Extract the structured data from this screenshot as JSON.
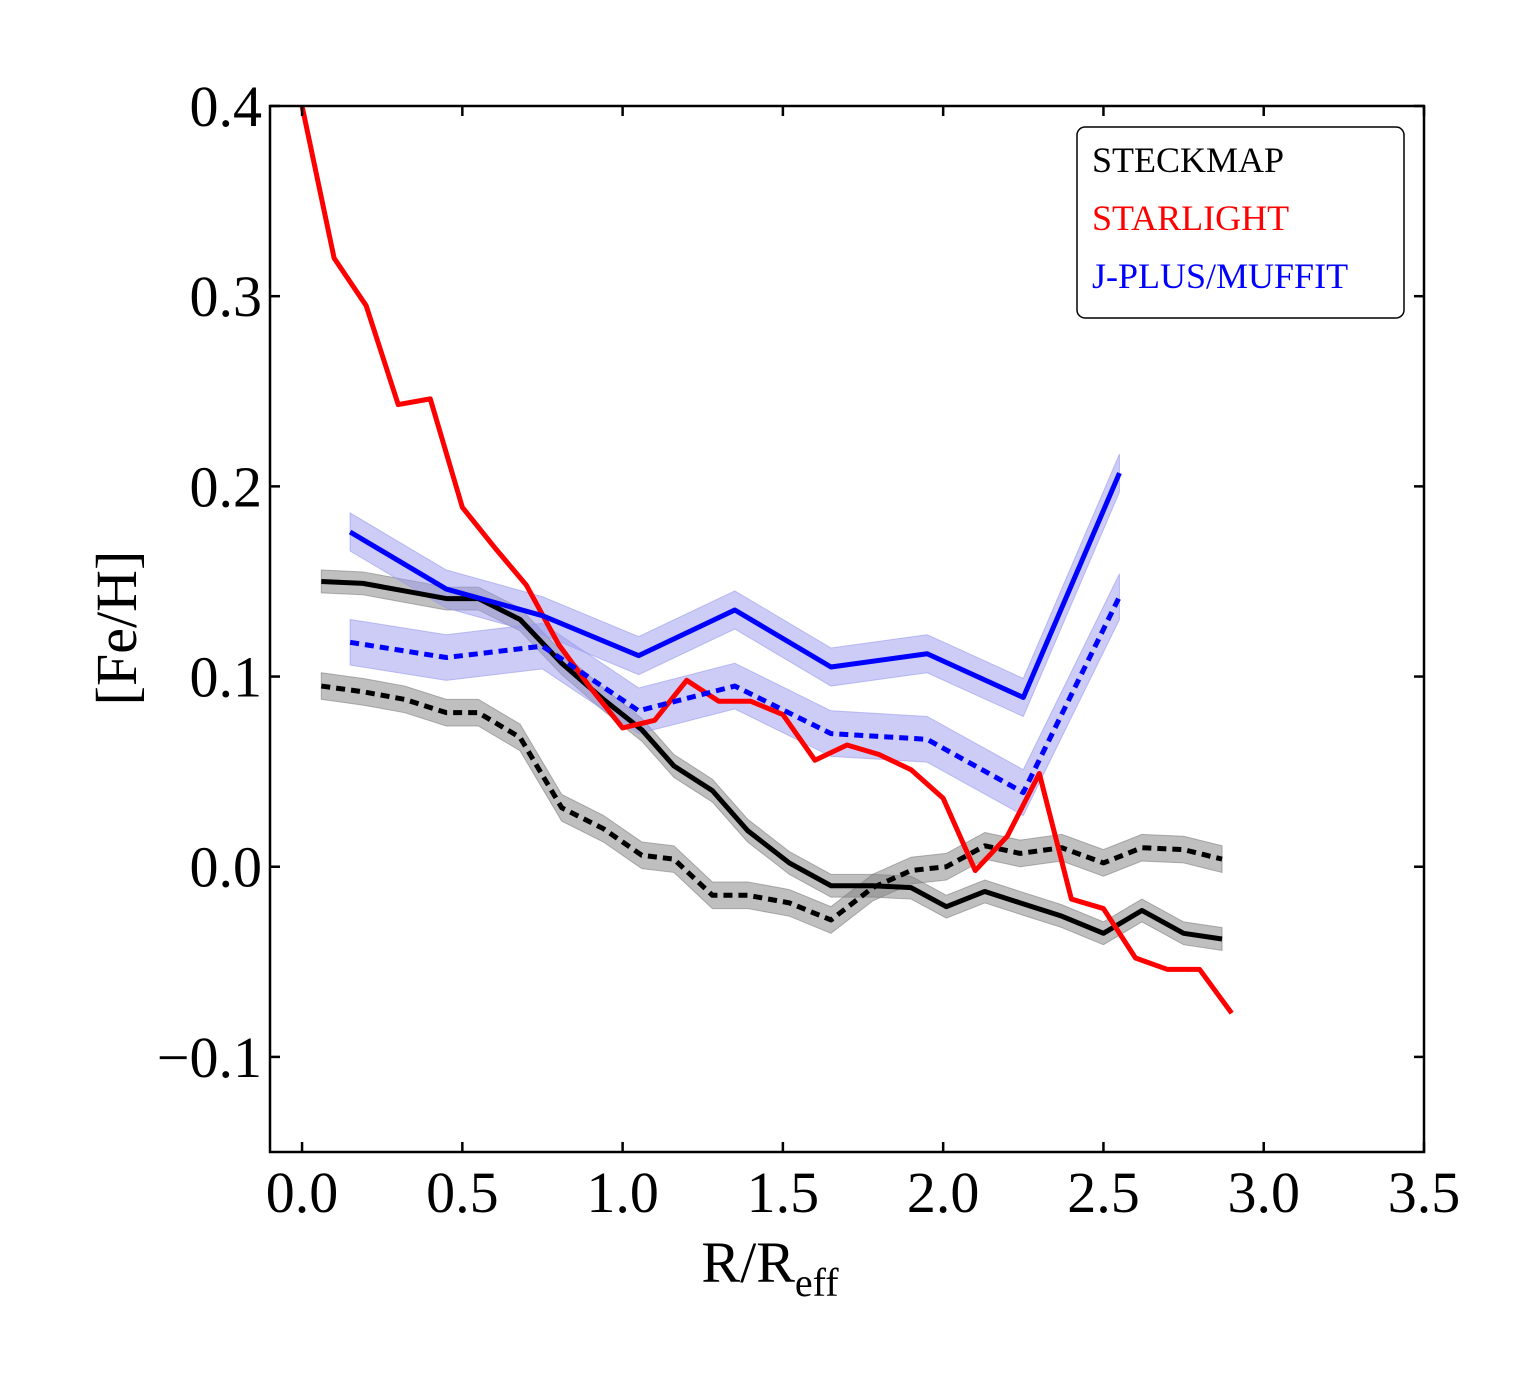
{
  "chart_data": {
    "type": "line",
    "title": "",
    "xlabel": "R/R",
    "xlabel_sub": "eff",
    "ylabel": "[Fe/H]",
    "xlim": [
      -0.1,
      3.5
    ],
    "ylim": [
      -0.15,
      0.4
    ],
    "grid": false,
    "legend_position": "top-right",
    "xticks": [
      0.0,
      0.5,
      1.0,
      1.5,
      2.0,
      2.5,
      3.0,
      3.5
    ],
    "xtick_labels": [
      "0.0",
      "0.5",
      "1.0",
      "1.5",
      "2.0",
      "2.5",
      "3.0",
      "3.5"
    ],
    "yticks": [
      -0.1,
      0.0,
      0.1,
      0.2,
      0.3,
      0.4
    ],
    "ytick_labels": [
      "−0.1",
      "0.0",
      "0.1",
      "0.2",
      "0.3",
      "0.4"
    ],
    "legend": [
      {
        "label": "STECKMAP",
        "color": "#000000"
      },
      {
        "label": "STARLIGHT",
        "color": "#ff0000"
      },
      {
        "label": "J-PLUS/MUFFIT",
        "color": "#0000ff"
      }
    ],
    "series": [
      {
        "name": "STECKMAP solid",
        "method": "STECKMAP",
        "style": "solid",
        "color": "#000000",
        "band_color": "#808080",
        "x": [
          0.06,
          0.19,
          0.32,
          0.45,
          0.55,
          0.68,
          0.81,
          0.94,
          1.06,
          1.16,
          1.28,
          1.39,
          1.52,
          1.65,
          1.78,
          1.9,
          2.01,
          2.13,
          2.24,
          2.37,
          2.5,
          2.62,
          2.75,
          2.87
        ],
        "y": [
          0.15,
          0.149,
          0.145,
          0.141,
          0.141,
          0.13,
          0.107,
          0.088,
          0.072,
          0.053,
          0.04,
          0.019,
          0.002,
          -0.01,
          -0.01,
          -0.011,
          -0.021,
          -0.013,
          -0.019,
          -0.026,
          -0.035,
          -0.023,
          -0.035,
          -0.038
        ],
        "err": 0.006
      },
      {
        "name": "STECKMAP dotted",
        "method": "STECKMAP",
        "style": "dotted",
        "color": "#000000",
        "band_color": "#808080",
        "x": [
          0.06,
          0.19,
          0.32,
          0.45,
          0.55,
          0.68,
          0.81,
          0.94,
          1.06,
          1.16,
          1.28,
          1.39,
          1.52,
          1.65,
          1.78,
          1.9,
          2.01,
          2.13,
          2.24,
          2.37,
          2.5,
          2.62,
          2.75,
          2.87
        ],
        "y": [
          0.095,
          0.092,
          0.088,
          0.081,
          0.081,
          0.068,
          0.031,
          0.02,
          0.006,
          0.004,
          -0.015,
          -0.015,
          -0.019,
          -0.028,
          -0.011,
          -0.002,
          0.0,
          0.011,
          0.007,
          0.01,
          0.002,
          0.01,
          0.009,
          0.004
        ],
        "err": 0.007
      },
      {
        "name": "STARLIGHT",
        "method": "STARLIGHT",
        "style": "solid",
        "color": "#ff0000",
        "x": [
          0.0,
          0.1,
          0.2,
          0.3,
          0.4,
          0.5,
          0.6,
          0.7,
          0.8,
          0.9,
          1.0,
          1.1,
          1.2,
          1.3,
          1.4,
          1.5,
          1.6,
          1.7,
          1.8,
          1.9,
          2.0,
          2.1,
          2.2,
          2.3,
          2.4,
          2.5,
          2.6,
          2.7,
          2.8,
          2.9
        ],
        "y": [
          0.4,
          0.32,
          0.295,
          0.243,
          0.246,
          0.189,
          0.168,
          0.148,
          0.117,
          0.094,
          0.073,
          0.077,
          0.098,
          0.087,
          0.087,
          0.08,
          0.056,
          0.064,
          0.059,
          0.051,
          0.036,
          -0.002,
          0.016,
          0.049,
          -0.017,
          -0.022,
          -0.048,
          -0.054,
          -0.054,
          -0.077
        ]
      },
      {
        "name": "J-PLUS/MUFFIT solid",
        "method": "J-PLUS/MUFFIT",
        "style": "solid",
        "color": "#0000ff",
        "band_color": "#9999ee",
        "x": [
          0.15,
          0.45,
          0.75,
          1.05,
          1.35,
          1.65,
          1.95,
          2.25,
          2.55
        ],
        "y": [
          0.176,
          0.146,
          0.132,
          0.111,
          0.135,
          0.105,
          0.112,
          0.089,
          0.207
        ],
        "err": 0.01
      },
      {
        "name": "J-PLUS/MUFFIT dotted",
        "method": "J-PLUS/MUFFIT",
        "style": "dotted",
        "color": "#0000ff",
        "band_color": "#9999ee",
        "x": [
          0.15,
          0.45,
          0.75,
          1.05,
          1.35,
          1.65,
          1.95,
          2.25,
          2.55
        ],
        "y": [
          0.118,
          0.11,
          0.116,
          0.082,
          0.095,
          0.07,
          0.067,
          0.039,
          0.142
        ],
        "err": 0.012
      }
    ]
  }
}
